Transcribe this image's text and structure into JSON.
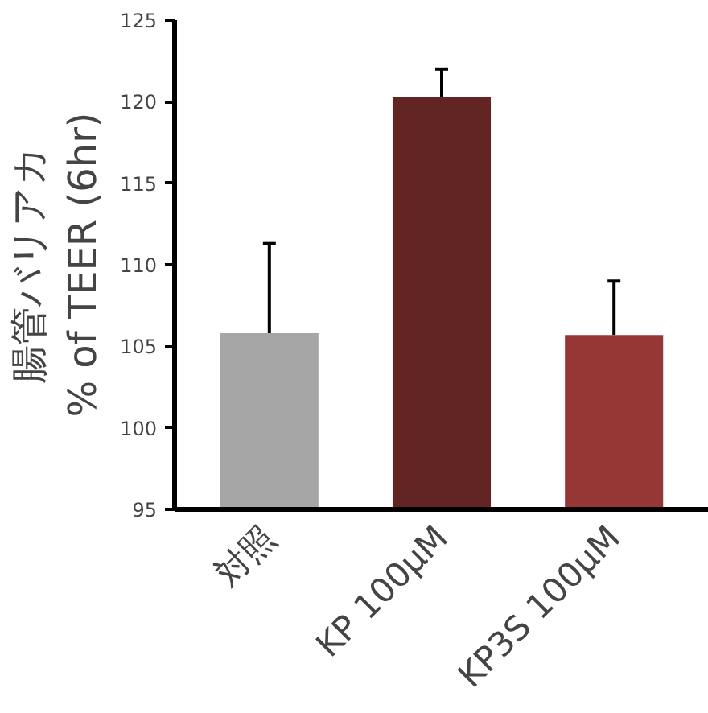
{
  "chart_data": {
    "type": "bar",
    "ylabel": "腸管バリアカ\n% of TEER (6hr)",
    "categories": [
      "対照",
      "KP 100μM",
      "KP3S 100μM"
    ],
    "values": [
      105.8,
      120.3,
      105.7
    ],
    "colors": [
      "#a6a6a6",
      "#632523",
      "#953735"
    ],
    "errors": [
      [
        105.8,
        111.3
      ],
      [
        120.3,
        122.0
      ],
      [
        105.7,
        109.0
      ]
    ],
    "ylim": [
      95,
      125
    ],
    "yticks": [
      95,
      100,
      105,
      110,
      115,
      120,
      125
    ],
    "grid": false
  }
}
